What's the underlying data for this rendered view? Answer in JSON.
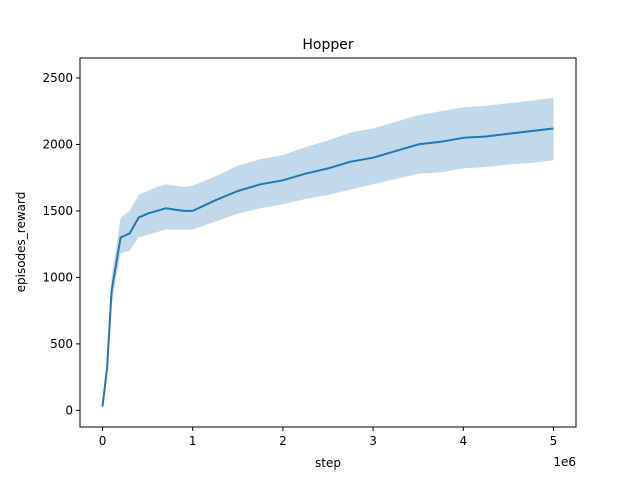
{
  "chart_data": {
    "type": "line",
    "title": "Hopper",
    "xlabel": "step",
    "ylabel": "episodes_reward",
    "x_offset_label": "1e6",
    "xlim": [
      -250000,
      5250000
    ],
    "ylim": [
      -125,
      2650
    ],
    "x_ticks": [
      0,
      1000000,
      2000000,
      3000000,
      4000000,
      5000000
    ],
    "x_tick_labels": [
      "0",
      "1",
      "2",
      "3",
      "4",
      "5"
    ],
    "y_ticks": [
      0,
      500,
      1000,
      1500,
      2000,
      2500
    ],
    "y_tick_labels": [
      "0",
      "500",
      "1000",
      "1500",
      "2000",
      "2500"
    ],
    "grid": false,
    "line_color": "#1f77b4",
    "band_color": "#1f77b4",
    "series": [
      {
        "x": [
          0,
          50000,
          100000,
          200000,
          300000,
          400000,
          500000,
          600000,
          700000,
          800000,
          900000,
          1000000,
          1250000,
          1500000,
          1750000,
          2000000,
          2250000,
          2500000,
          2750000,
          3000000,
          3250000,
          3500000,
          3750000,
          4000000,
          4250000,
          4500000,
          4750000,
          5000000
        ],
        "values": [
          30,
          320,
          900,
          1300,
          1330,
          1450,
          1480,
          1500,
          1520,
          1510,
          1500,
          1500,
          1580,
          1650,
          1700,
          1730,
          1780,
          1820,
          1870,
          1900,
          1950,
          2000,
          2020,
          2050,
          2060,
          2080,
          2100,
          2120
        ],
        "band_low": [
          20,
          250,
          800,
          1180,
          1200,
          1300,
          1320,
          1340,
          1360,
          1360,
          1360,
          1360,
          1420,
          1480,
          1520,
          1550,
          1590,
          1620,
          1660,
          1700,
          1740,
          1780,
          1790,
          1820,
          1830,
          1850,
          1860,
          1880
        ],
        "band_high": [
          40,
          380,
          1000,
          1450,
          1500,
          1620,
          1650,
          1680,
          1700,
          1690,
          1680,
          1690,
          1760,
          1840,
          1890,
          1920,
          1980,
          2030,
          2090,
          2120,
          2170,
          2220,
          2250,
          2280,
          2290,
          2310,
          2330,
          2350
        ]
      }
    ]
  }
}
